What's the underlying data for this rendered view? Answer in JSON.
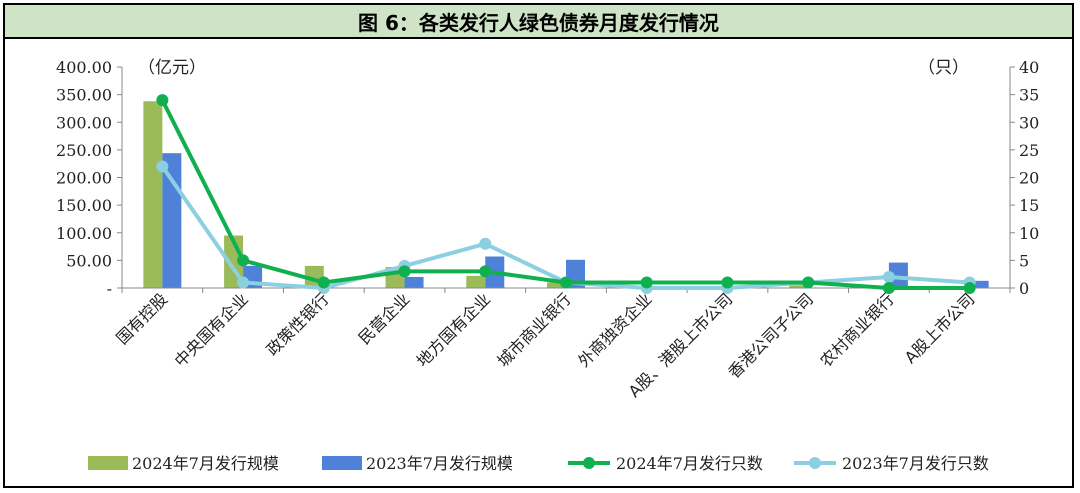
{
  "title": "图 6：各类发行人绿色债券月度发行情况",
  "chart_data": {
    "type": "bar+line",
    "left_unit": "（亿元）",
    "right_unit": "（只）",
    "left_ticks": [
      "400.00",
      "350.00",
      "300.00",
      "250.00",
      "200.00",
      "150.00",
      "100.00",
      "50.00",
      "-"
    ],
    "right_ticks": [
      "40",
      "35",
      "30",
      "25",
      "20",
      "15",
      "10",
      "5",
      "0"
    ],
    "ylim_left": [
      0,
      400
    ],
    "ylim_right": [
      0,
      40
    ],
    "categories": [
      "国有控股",
      "中央国有企业",
      "政策性银行",
      "民营企业",
      "地方国有企业",
      "城市商业银行",
      "外商独资企业",
      "A股、港股上市公司",
      "香港公司子公司",
      "农村商业银行",
      "A股上市公司"
    ],
    "series": [
      {
        "name": "2024年7月发行规模",
        "type": "bar",
        "axis": "left",
        "color": "#9bbb59",
        "values": [
          338,
          95,
          40,
          38,
          22,
          10,
          2,
          2,
          5,
          2,
          2
        ]
      },
      {
        "name": "2023年7月发行规模",
        "type": "bar",
        "axis": "left",
        "color": "#4f81d9",
        "values": [
          244,
          40,
          0,
          20,
          57,
          51,
          0,
          0,
          0,
          46,
          13
        ]
      },
      {
        "name": "2024年7月发行只数",
        "type": "line",
        "axis": "right",
        "color": "#10b050",
        "values": [
          34,
          5,
          1,
          3,
          3,
          1,
          1,
          1,
          1,
          0,
          0
        ]
      },
      {
        "name": "2023年7月发行只数",
        "type": "line",
        "axis": "right",
        "color": "#8ccfe0",
        "values": [
          22,
          1,
          0,
          4,
          8,
          1,
          0,
          0,
          1,
          2,
          1
        ]
      }
    ]
  }
}
